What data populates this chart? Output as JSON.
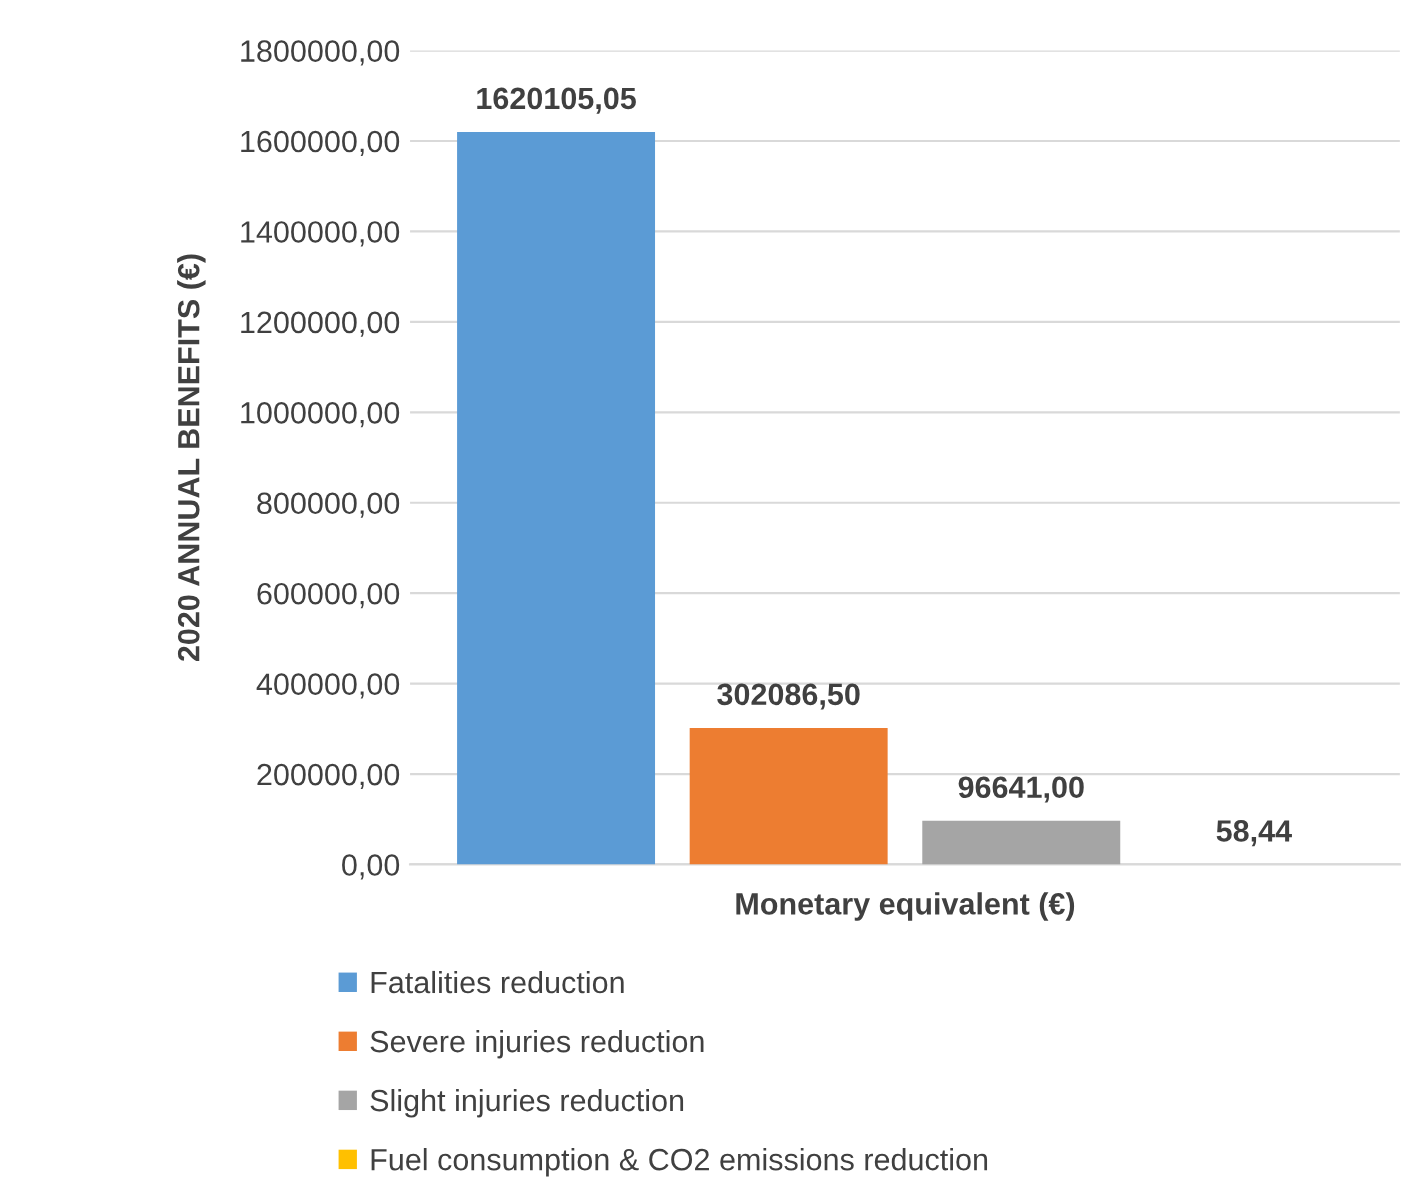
{
  "chart_data": {
    "type": "bar",
    "ylabel": "2020 ANNUAL BENEFITS (€)",
    "categories": [
      "Monetary equivalent (€)"
    ],
    "series": [
      {
        "name": "Fatalities reduction",
        "color": "#5b9bd5",
        "values": [
          1620105.05
        ],
        "value_labels": [
          "1620105,05"
        ]
      },
      {
        "name": "Severe injuries reduction",
        "color": "#ed7d31",
        "values": [
          302086.5
        ],
        "value_labels": [
          "302086,50"
        ]
      },
      {
        "name": "Slight injuries reduction",
        "color": "#a5a5a5",
        "values": [
          96641.0
        ],
        "value_labels": [
          "96641,00"
        ]
      },
      {
        "name": "Fuel consumption & CO2 emissions reduction",
        "color": "#ffc000",
        "values": [
          58.44
        ],
        "value_labels": [
          "58,44"
        ]
      }
    ],
    "ylim": [
      0,
      1800000
    ],
    "yticks": [
      {
        "value": 0,
        "label": "0,00"
      },
      {
        "value": 200000,
        "label": "200000,00"
      },
      {
        "value": 400000,
        "label": "400000,00"
      },
      {
        "value": 600000,
        "label": "600000,00"
      },
      {
        "value": 800000,
        "label": "800000,00"
      },
      {
        "value": 1000000,
        "label": "1000000,00"
      },
      {
        "value": 1200000,
        "label": "1200000,00"
      },
      {
        "value": 1400000,
        "label": "1400000,00"
      },
      {
        "value": 1600000,
        "label": "1600000,00"
      },
      {
        "value": 1800000,
        "label": "1800000,00"
      }
    ],
    "grid": "y",
    "legend": "bottom"
  }
}
